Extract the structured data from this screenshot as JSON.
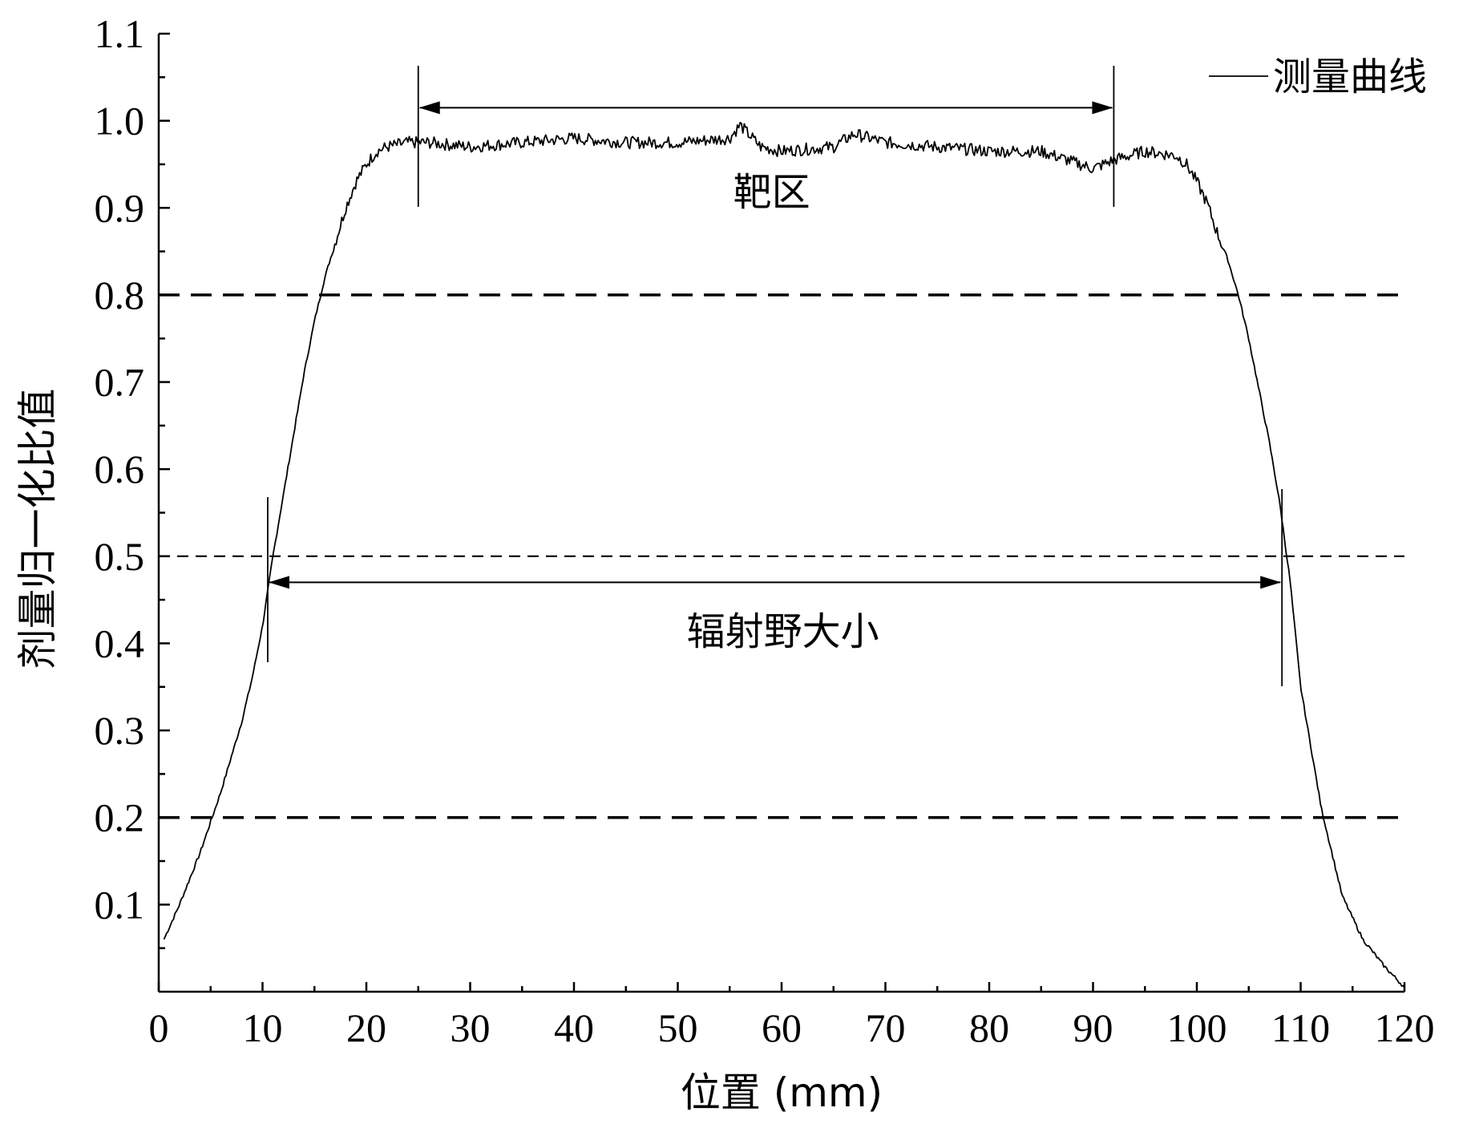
{
  "chart_data": {
    "type": "line",
    "title": "",
    "xlabel": "位置 (mm)",
    "ylabel": "剂量归一化比值",
    "xlim": [
      0,
      120
    ],
    "ylim": [
      0,
      1.1
    ],
    "xticks": [
      "0",
      "10",
      "20",
      "30",
      "40",
      "50",
      "60",
      "70",
      "80",
      "90",
      "100",
      "110",
      "120"
    ],
    "yticks": [
      "0.1",
      "0.2",
      "0.3",
      "0.4",
      "0.5",
      "0.6",
      "0.7",
      "0.8",
      "0.9",
      "1.0",
      "1.1"
    ],
    "grid": false,
    "legend": {
      "position": "top-right",
      "entries": [
        "测量曲线"
      ]
    },
    "series": [
      {
        "name": "测量曲线",
        "x": [
          0.5,
          2,
          4,
          6,
          8,
          9,
          10,
          11,
          12,
          13,
          14,
          15,
          16,
          17,
          18,
          19,
          20,
          21,
          22,
          24,
          26,
          30,
          35,
          40,
          45,
          50,
          55,
          56,
          58,
          60,
          65,
          67,
          70,
          75,
          80,
          85,
          90,
          92,
          95,
          98,
          99,
          100,
          101,
          102,
          103,
          104,
          105,
          106,
          107,
          108,
          109,
          110,
          111,
          112,
          113,
          114,
          116,
          118,
          120
        ],
        "y": [
          0.06,
          0.1,
          0.16,
          0.23,
          0.31,
          0.36,
          0.42,
          0.5,
          0.57,
          0.64,
          0.71,
          0.77,
          0.82,
          0.86,
          0.9,
          0.93,
          0.95,
          0.965,
          0.97,
          0.975,
          0.975,
          0.97,
          0.975,
          0.98,
          0.975,
          0.975,
          0.98,
          0.995,
          0.97,
          0.965,
          0.97,
          0.985,
          0.975,
          0.97,
          0.965,
          0.965,
          0.945,
          0.955,
          0.965,
          0.96,
          0.95,
          0.93,
          0.905,
          0.87,
          0.84,
          0.8,
          0.75,
          0.69,
          0.63,
          0.56,
          0.47,
          0.35,
          0.28,
          0.21,
          0.16,
          0.11,
          0.06,
          0.03,
          0.005
        ]
      }
    ],
    "reference_lines": [
      {
        "y": 0.8,
        "style": "dashed"
      },
      {
        "y": 0.5,
        "style": "dashed-thin"
      },
      {
        "y": 0.2,
        "style": "dashed"
      }
    ],
    "annotations": [
      {
        "text": "靶区",
        "x_start": 25,
        "x_end": 92,
        "y": 1.015
      },
      {
        "text": "辐射野大小",
        "x_start": 10.5,
        "x_end": 108.2,
        "y": 0.47
      }
    ]
  }
}
